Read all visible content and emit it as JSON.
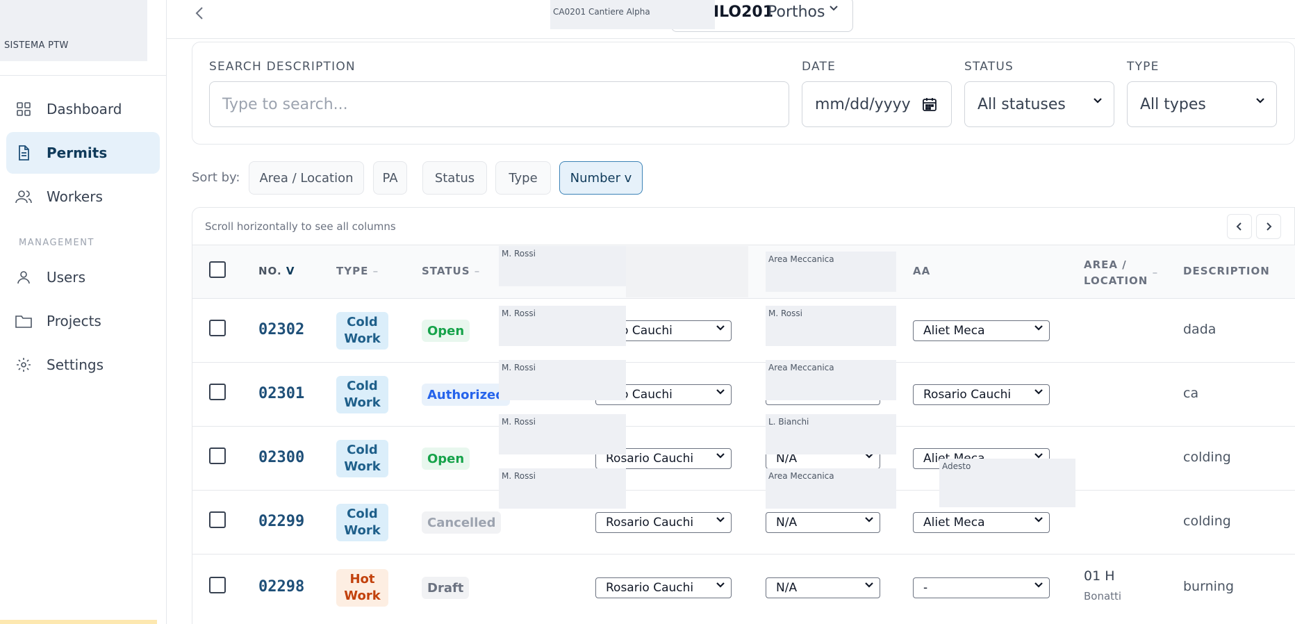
{
  "brand": {
    "name": "SISTEMA PTW"
  },
  "sidebar": {
    "items": [
      {
        "label": "Dashboard",
        "icon": "grid-icon"
      },
      {
        "label": "Permits",
        "icon": "document-icon",
        "active": true
      },
      {
        "label": "Workers",
        "icon": "users-group-icon"
      }
    ],
    "section_label": "MANAGEMENT",
    "management_items": [
      {
        "label": "Users",
        "icon": "user-icon"
      },
      {
        "label": "Projects",
        "icon": "folder-icon"
      },
      {
        "label": "Settings",
        "icon": "gear-icon"
      }
    ]
  },
  "topbar": {
    "project_code": "ILO201",
    "project_name": "Porthos",
    "tooltip": "CA0201  Cantiere Alpha"
  },
  "filters": {
    "search_label": "SEARCH DESCRIPTION",
    "search_placeholder": "Type to search...",
    "date_label": "DATE",
    "date_value": "mm/dd/yyyy",
    "status_label": "STATUS",
    "status_value": "All statuses",
    "type_label": "TYPE",
    "type_value": "All types"
  },
  "sort": {
    "label": "Sort by:",
    "options": [
      "Area / Location",
      "PA",
      "Status",
      "Type",
      "Number v"
    ],
    "active": "Number v"
  },
  "table": {
    "scroll_hint": "Scroll horizontally to see all columns",
    "headers": {
      "number": "NO.",
      "number_sort": "V",
      "type": "TYPE",
      "type_sort": "–",
      "status": "STATUS",
      "status_sort": "–",
      "aa": "AA",
      "area_line1": "AREA /",
      "area_line2": "LOCATION",
      "area_sort": "–",
      "description": "DESCRIPTION"
    },
    "rows": [
      {
        "number": "02302",
        "type_l1": "Cold",
        "type_l2": "Work",
        "type_class": "cold",
        "status": "Open",
        "status_class": "open",
        "pa": "ario Cauchi",
        "col2": "",
        "aa": "Aliet Meca",
        "area": "",
        "area_sub": "",
        "description": "dada"
      },
      {
        "number": "02301",
        "type_l1": "Cold",
        "type_l2": "Work",
        "type_class": "cold",
        "status": "Authorized",
        "status_class": "authorized",
        "pa": "ario Cauchi",
        "col2": "",
        "aa": "Rosario Cauchi",
        "area": "",
        "area_sub": "",
        "description": "ca"
      },
      {
        "number": "02300",
        "type_l1": "Cold",
        "type_l2": "Work",
        "type_class": "cold",
        "status": "Open",
        "status_class": "open",
        "pa": "Rosario Cauchi",
        "col2": "N/A",
        "aa": "Aliet Meca",
        "area": "",
        "area_sub": "",
        "description": "colding"
      },
      {
        "number": "02299",
        "type_l1": "Cold",
        "type_l2": "Work",
        "type_class": "cold",
        "status": "Cancelled",
        "status_class": "cancelled",
        "pa": "Rosario Cauchi",
        "col2": "N/A",
        "aa": "Aliet Meca",
        "area": "",
        "area_sub": "",
        "description": "colding"
      },
      {
        "number": "02298",
        "type_l1": "Hot",
        "type_l2": "Work",
        "type_class": "hot",
        "status": "Draft",
        "status_class": "draft",
        "pa": "Rosario Cauchi",
        "col2": "N/A",
        "aa": "-",
        "area": "01 H",
        "area_sub": "Bonatti",
        "description": "burning"
      }
    ],
    "overlay_tips": {
      "head_left": "M. Rossi",
      "head_right": "Area Meccanica",
      "r1_left": "M. Rossi",
      "r1_right": "M. Rossi",
      "r2_left": "M. Rossi",
      "r2_right": "Area Meccanica",
      "r3_left": "M. Rossi",
      "r3_right": "L. Bianchi",
      "r4_left": "M. Rossi",
      "r4_right": "Area Meccanica",
      "aa_tip": "Adesto"
    }
  },
  "colors": {
    "accent": "#1e4f78",
    "active_nav_bg": "#e6f1fa",
    "open": "#16a34a",
    "authorized": "#2563eb",
    "hot": "#c2410c"
  }
}
